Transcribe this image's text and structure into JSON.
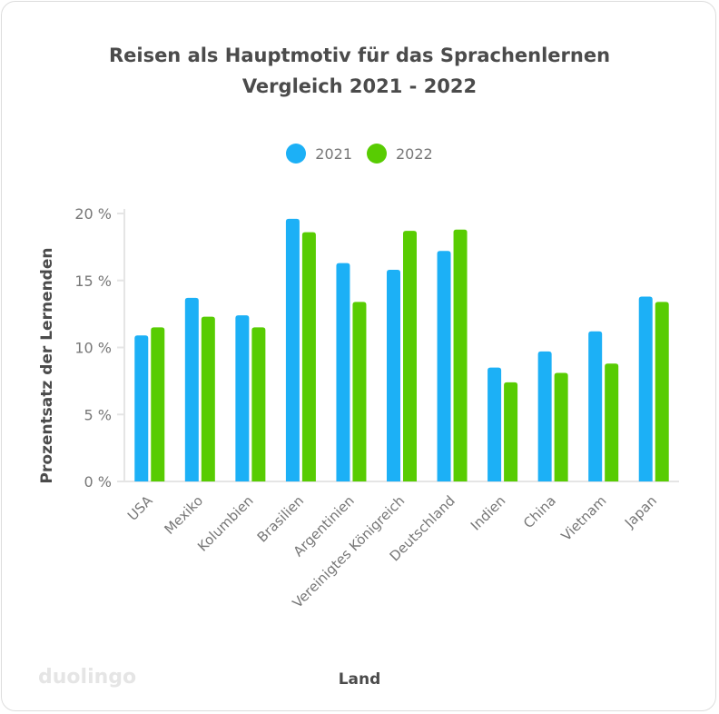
{
  "chart_data": {
    "type": "bar",
    "title": "Reisen als Hauptmotiv für das Sprachenlernen",
    "subtitle": "Vergleich 2021 - 2022",
    "xlabel": "Land",
    "ylabel": "Prozentsatz der Lernenden",
    "categories": [
      "USA",
      "Mexiko",
      "Kolumbien",
      "Brasilien",
      "Argentinien",
      "Vereinigtes Königreich",
      "Deutschland",
      "Indien",
      "China",
      "Vietnam",
      "Japan"
    ],
    "series": [
      {
        "name": "2021",
        "color": "#1CB0F6",
        "values": [
          10.9,
          13.7,
          12.4,
          19.6,
          16.3,
          15.8,
          17.2,
          8.5,
          9.7,
          11.2,
          13.8
        ]
      },
      {
        "name": "2022",
        "color": "#58CC02",
        "values": [
          11.5,
          12.3,
          11.5,
          18.6,
          13.4,
          18.7,
          18.8,
          7.4,
          8.1,
          8.8,
          13.4
        ]
      }
    ],
    "ylim": [
      0,
      20
    ],
    "yticks": [
      0,
      5,
      10,
      15,
      20
    ],
    "ytick_labels": [
      "0 %",
      "5 %",
      "10 %",
      "15 %",
      "20 %"
    ],
    "legend_position": "top-center",
    "grid": false
  },
  "brand": "duolingo"
}
